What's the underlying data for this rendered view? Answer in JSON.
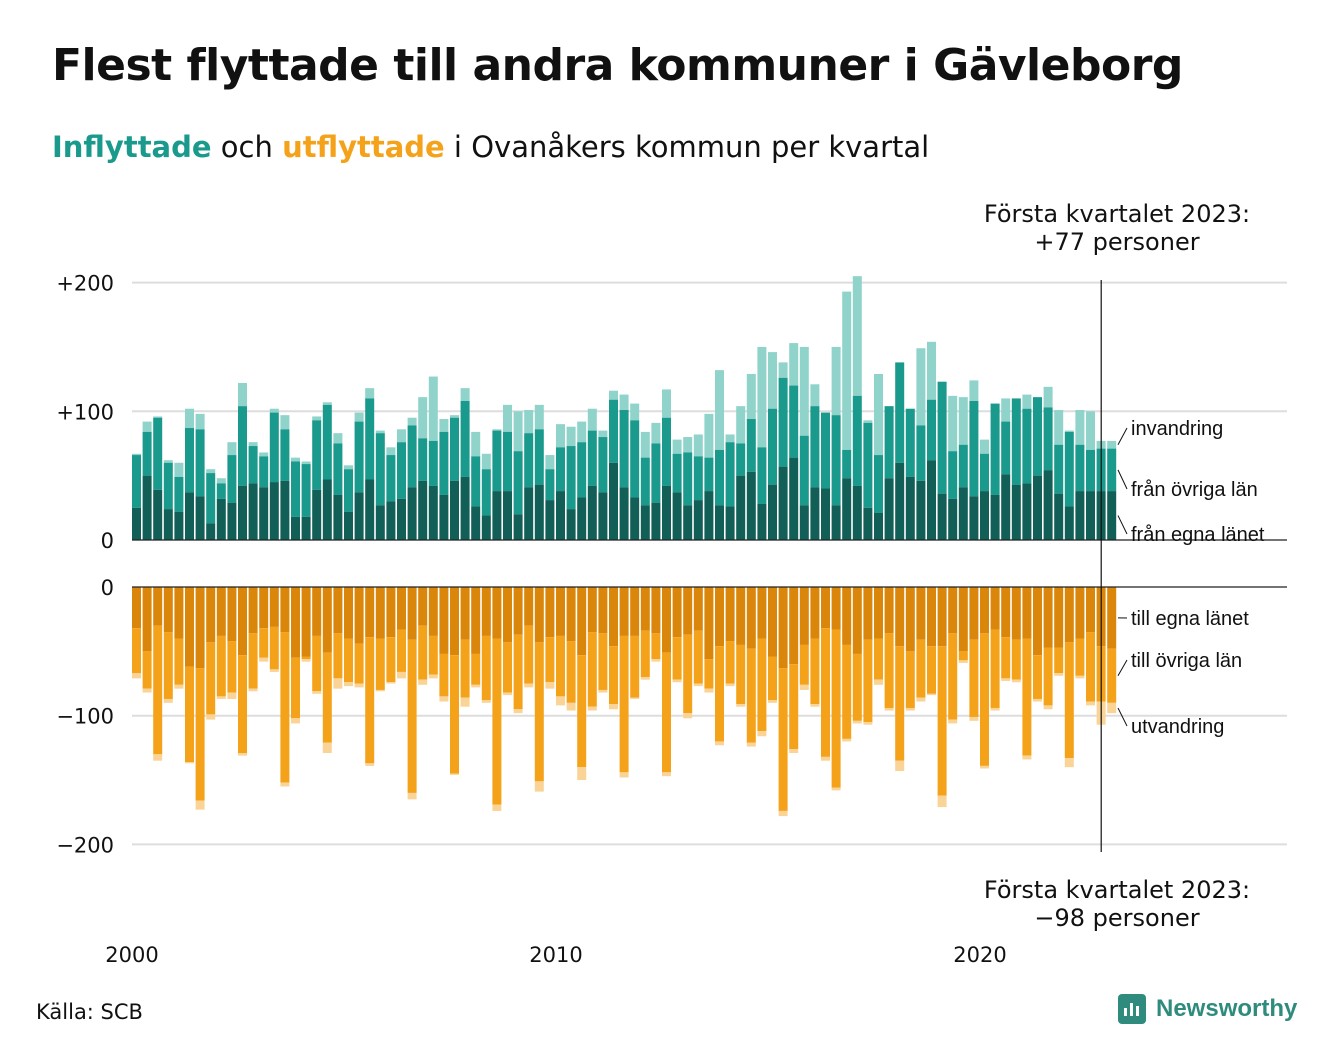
{
  "title": "Flest flyttade till andra kommuner i Gävleborg",
  "subtitle": {
    "part1": "Inflyttade",
    "part2": " och ",
    "part3": "utflyttade",
    "part4": " i Ovanåkers kommun per kvartal"
  },
  "source": "Källa: SCB",
  "logo": "Newsworthy",
  "colors": {
    "in_own": "#125f58",
    "in_other": "#1a9a8c",
    "in_immig": "#8fd3ca",
    "out_own": "#d9860b",
    "out_other": "#f5a21b",
    "out_emig": "#fad497"
  },
  "chart_data": {
    "type": "bar",
    "x_start": "2000 Q1",
    "x_ticks": [
      "2000",
      "2010",
      "2020"
    ],
    "y_ticks_in": [
      "+200",
      "+100",
      "0"
    ],
    "y_ticks_out": [
      "0",
      "−100",
      "−200"
    ],
    "in_series_names": [
      "invandring",
      "från övriga län",
      "från egna länet"
    ],
    "out_series_names": [
      "till egna länet",
      "till övriga län",
      "utvandring"
    ],
    "annotation_in": [
      "Första kvartalet 2023:",
      "+77 personer"
    ],
    "annotation_out": [
      "Första kvartalet 2023:",
      "−98 personer"
    ],
    "inflyttade_egna": [
      25,
      50,
      39,
      24,
      22,
      37,
      34,
      13,
      32,
      29,
      42,
      44,
      41,
      45,
      46,
      18,
      18,
      39,
      47,
      35,
      22,
      37,
      47,
      27,
      30,
      32,
      41,
      46,
      42,
      35,
      46,
      49,
      26,
      19,
      38,
      38,
      20,
      41,
      43,
      31,
      38,
      24,
      33,
      42,
      37,
      60,
      41,
      33,
      27,
      29,
      42,
      37,
      27,
      31,
      38,
      27,
      26,
      50,
      53,
      28,
      43,
      57,
      64,
      27,
      41,
      40,
      27,
      48,
      42,
      25,
      21,
      48,
      60,
      49,
      46,
      62,
      36,
      32,
      41,
      34,
      38,
      35,
      51,
      43,
      44,
      50,
      54,
      36,
      26,
      38,
      38,
      38,
      38
    ],
    "inflyttade_ovriga": [
      66,
      84,
      95,
      60,
      49,
      87,
      86,
      52,
      44,
      66,
      104,
      73,
      65,
      99,
      86,
      61,
      59,
      93,
      105,
      75,
      55,
      92,
      110,
      83,
      66,
      76,
      89,
      79,
      77,
      84,
      95,
      108,
      65,
      55,
      85,
      84,
      69,
      83,
      86,
      55,
      72,
      73,
      76,
      85,
      80,
      109,
      101,
      93,
      64,
      75,
      95,
      67,
      68,
      65,
      64,
      70,
      76,
      75,
      94,
      72,
      102,
      126,
      120,
      81,
      104,
      99,
      97,
      70,
      112,
      91,
      66,
      104,
      138,
      102,
      89,
      109,
      123,
      69,
      74,
      108,
      67,
      106,
      92,
      110,
      102,
      111,
      103,
      74,
      84,
      74,
      70,
      71,
      71
    ],
    "inflyttade_inv": [
      67,
      92,
      96,
      62,
      60,
      102,
      98,
      55,
      48,
      76,
      122,
      76,
      68,
      102,
      97,
      64,
      61,
      96,
      107,
      83,
      58,
      99,
      118,
      85,
      72,
      86,
      95,
      111,
      127,
      94,
      97,
      118,
      84,
      67,
      86,
      105,
      100,
      101,
      105,
      66,
      90,
      88,
      92,
      102,
      85,
      116,
      113,
      106,
      84,
      91,
      117,
      78,
      80,
      82,
      98,
      132,
      82,
      104,
      129,
      150,
      146,
      138,
      153,
      150,
      121,
      92,
      150,
      193,
      205,
      93,
      129,
      100,
      85,
      88,
      149,
      154,
      118,
      112,
      111,
      124,
      78,
      94,
      110,
      103,
      113,
      109,
      119,
      101,
      85,
      101,
      100,
      77,
      77
    ],
    "utflyttade_egna": [
      32,
      50,
      30,
      35,
      40,
      62,
      63,
      43,
      38,
      42,
      53,
      36,
      32,
      31,
      35,
      55,
      54,
      38,
      51,
      36,
      40,
      44,
      39,
      40,
      39,
      33,
      41,
      30,
      38,
      52,
      53,
      41,
      52,
      38,
      40,
      43,
      37,
      30,
      43,
      39,
      38,
      42,
      53,
      35,
      36,
      46,
      38,
      38,
      34,
      36,
      51,
      39,
      37,
      34,
      56,
      46,
      42,
      45,
      48,
      40,
      54,
      63,
      60,
      45,
      40,
      32,
      33,
      45,
      52,
      41,
      40,
      36,
      46,
      50,
      41,
      46,
      46,
      36,
      50,
      41,
      36,
      33,
      39,
      41,
      40,
      53,
      47,
      47,
      43,
      40,
      35,
      46,
      48
    ],
    "utflyttade_ovriga": [
      67,
      79,
      130,
      87,
      76,
      136,
      166,
      99,
      85,
      82,
      129,
      79,
      55,
      64,
      152,
      102,
      56,
      81,
      121,
      71,
      74,
      75,
      137,
      80,
      74,
      66,
      160,
      72,
      68,
      85,
      145,
      86,
      76,
      88,
      169,
      82,
      95,
      75,
      151,
      74,
      85,
      90,
      140,
      93,
      80,
      91,
      144,
      86,
      70,
      56,
      144,
      72,
      98,
      75,
      79,
      120,
      75,
      91,
      121,
      112,
      88,
      174,
      126,
      76,
      91,
      132,
      156,
      118,
      104,
      105,
      72,
      94,
      135,
      94,
      86,
      83,
      162,
      103,
      57,
      101,
      139,
      94,
      71,
      72,
      131,
      87,
      92,
      67,
      133,
      69,
      89,
      89,
      90
    ],
    "utflyttade_emig": [
      71,
      82,
      135,
      90,
      79,
      137,
      173,
      103,
      87,
      87,
      131,
      81,
      58,
      66,
      155,
      106,
      58,
      83,
      129,
      79,
      77,
      78,
      139,
      81,
      75,
      71,
      165,
      76,
      71,
      89,
      146,
      93,
      78,
      90,
      174,
      84,
      98,
      78,
      159,
      79,
      92,
      96,
      150,
      96,
      82,
      95,
      148,
      87,
      72,
      58,
      147,
      74,
      102,
      77,
      82,
      123,
      77,
      93,
      124,
      116,
      90,
      178,
      129,
      80,
      93,
      135,
      158,
      120,
      106,
      107,
      76,
      96,
      143,
      96,
      89,
      84,
      171,
      106,
      59,
      104,
      141,
      96,
      73,
      74,
      134,
      89,
      95,
      69,
      140,
      71,
      92,
      107,
      98
    ]
  }
}
